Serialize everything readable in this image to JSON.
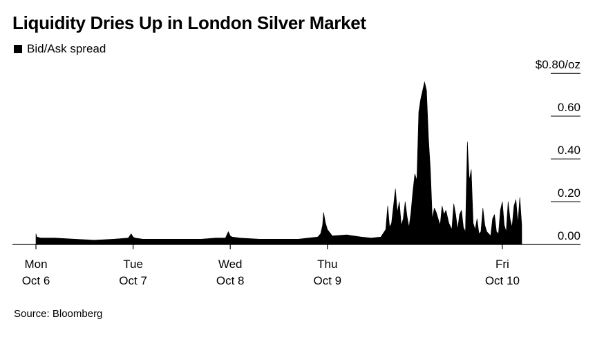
{
  "header": {
    "title": "Liquidity Dries Up in London Silver Market"
  },
  "footer": {
    "source": "Source: Bloomberg"
  },
  "colors": {
    "series": "#000000",
    "background": "#ffffff",
    "gridline": "#000000"
  },
  "chart_data": {
    "type": "area",
    "title": "Liquidity Dries Up in London Silver Market",
    "legend_position": "top-left",
    "grid": true,
    "series": [
      {
        "name": "Bid/Ask spread",
        "x": [
          0.0,
          0.01,
          0.05,
          0.2,
          0.4,
          0.6,
          0.8,
          0.95,
          0.98,
          1.0,
          1.02,
          1.1,
          1.3,
          1.5,
          1.7,
          1.85,
          1.95,
          1.98,
          2.0,
          2.02,
          2.1,
          2.3,
          2.5,
          2.7,
          2.9,
          2.93,
          2.95,
          2.96,
          2.98,
          3.0,
          3.05,
          3.2,
          3.35,
          3.45,
          3.55,
          3.6,
          3.62,
          3.64,
          3.66,
          3.68,
          3.7,
          3.72,
          3.74,
          3.76,
          3.78,
          3.8,
          3.82,
          3.84,
          3.86,
          3.88,
          3.9,
          3.92,
          3.94,
          3.96,
          4.0,
          4.02,
          4.04,
          4.06,
          4.08,
          4.1,
          4.12,
          4.14,
          4.16,
          4.18,
          4.2,
          4.22,
          4.25,
          4.28,
          4.3,
          4.32,
          4.34,
          4.36,
          4.38,
          4.4,
          4.42,
          4.44,
          4.46,
          4.48,
          4.5,
          4.52,
          4.54,
          4.56,
          4.58,
          4.6,
          4.62,
          4.64,
          4.66,
          4.68,
          4.7,
          4.72,
          4.74,
          4.76,
          4.78,
          4.8,
          4.82,
          4.84,
          4.86,
          4.88,
          4.9,
          4.92,
          4.94,
          4.96,
          4.98,
          5.0
        ],
        "values": [
          0.05,
          0.035,
          0.03,
          0.03,
          0.025,
          0.02,
          0.025,
          0.03,
          0.05,
          0.035,
          0.03,
          0.025,
          0.025,
          0.025,
          0.025,
          0.03,
          0.03,
          0.06,
          0.04,
          0.035,
          0.03,
          0.025,
          0.025,
          0.025,
          0.035,
          0.05,
          0.09,
          0.15,
          0.1,
          0.07,
          0.04,
          0.045,
          0.035,
          0.03,
          0.035,
          0.07,
          0.18,
          0.08,
          0.1,
          0.18,
          0.26,
          0.15,
          0.2,
          0.09,
          0.12,
          0.2,
          0.13,
          0.08,
          0.15,
          0.25,
          0.33,
          0.3,
          0.62,
          0.68,
          0.76,
          0.72,
          0.5,
          0.35,
          0.12,
          0.17,
          0.15,
          0.12,
          0.09,
          0.18,
          0.14,
          0.16,
          0.1,
          0.07,
          0.19,
          0.14,
          0.07,
          0.14,
          0.16,
          0.08,
          0.06,
          0.48,
          0.3,
          0.35,
          0.1,
          0.07,
          0.12,
          0.05,
          0.06,
          0.17,
          0.09,
          0.06,
          0.05,
          0.04,
          0.12,
          0.14,
          0.06,
          0.05,
          0.16,
          0.2,
          0.09,
          0.06,
          0.2,
          0.12,
          0.08,
          0.18,
          0.21,
          0.1,
          0.22,
          0.09
        ]
      }
    ],
    "xlim": [
      0,
      5
    ],
    "ylim": [
      0,
      0.82
    ],
    "y_ticks": [
      0,
      0.2,
      0.4,
      0.6,
      0.8
    ],
    "y_tick_labels": [
      "0.00",
      "0.20",
      "0.40",
      "0.60",
      "$0.80/oz"
    ],
    "x_ticks": [
      0,
      1,
      2,
      3,
      4.8
    ],
    "x_tick_labels": [
      [
        "Mon",
        "Oct 6"
      ],
      [
        "Tue",
        "Oct 7"
      ],
      [
        "Wed",
        "Oct 8"
      ],
      [
        "Thu",
        "Oct 9"
      ],
      [
        "Fri",
        "Oct 10"
      ]
    ]
  }
}
